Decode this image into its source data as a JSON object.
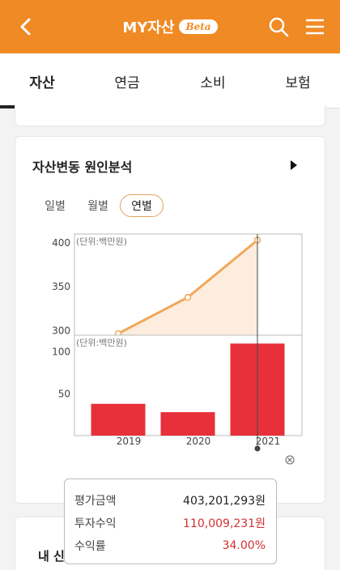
{
  "header": {
    "title": "MY자산",
    "beta": "Beta"
  },
  "tabs": [
    {
      "label": "자산"
    },
    {
      "label": "연금"
    },
    {
      "label": "소비"
    },
    {
      "label": "보험"
    }
  ],
  "section": {
    "title": "자산변동 원인분석",
    "periods": [
      {
        "label": "일별"
      },
      {
        "label": "월별"
      },
      {
        "label": "연별"
      }
    ],
    "active_period": "연별"
  },
  "colors": {
    "header": "#f08a24",
    "line": "#f0a858",
    "bar": "#e8303a",
    "accent_red": "#d0302f"
  },
  "chart_data": [
    {
      "type": "line",
      "unit_label": "(단위:백만원)",
      "x": [
        "2019",
        "2020",
        "2021"
      ],
      "values": [
        290,
        338,
        403
      ],
      "ylim": [
        295,
        410
      ],
      "yticks": [
        300,
        350,
        400
      ]
    },
    {
      "type": "bar",
      "unit_label": "(단위:백만원)",
      "categories": [
        "2019",
        "2020",
        "2021"
      ],
      "values": [
        38,
        28,
        110
      ],
      "ylim": [
        0,
        120
      ],
      "yticks": [
        50,
        100
      ]
    }
  ],
  "tooltip": {
    "rows": [
      {
        "label": "평가금액",
        "value": "403,201,293원"
      },
      {
        "label": "투자수익",
        "value": "110,009,231원"
      },
      {
        "label": "수익률",
        "value": "34.00%"
      }
    ]
  },
  "next_section": {
    "title": "내 신"
  }
}
